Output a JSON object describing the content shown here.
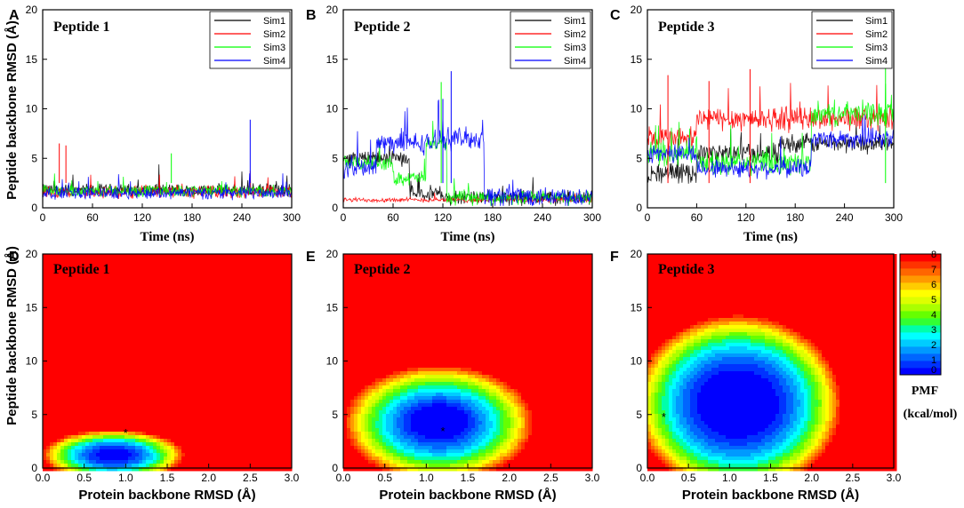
{
  "figure": {
    "y_axis_top_label": "Peptide backbone RMSD (Å)",
    "y_axis_bottom_label": "Peptide backbone RMSD (Å)",
    "colorbar": {
      "ticks": [
        "8",
        "7",
        "6",
        "5",
        "4",
        "3",
        "2",
        "1",
        "0"
      ],
      "label_line1": "PMF",
      "label_line2": "(kcal/mol)",
      "levels": [
        0,
        0.5,
        1,
        1.5,
        2,
        2.5,
        3,
        3.5,
        4,
        4.5,
        5,
        5.5,
        6,
        6.5,
        7,
        7.5,
        8
      ],
      "colors": [
        "#0000ff",
        "#0033ff",
        "#0066ff",
        "#0099ff",
        "#00ccff",
        "#00ffff",
        "#00ffaa",
        "#33ff33",
        "#66ff00",
        "#aaff00",
        "#ddff00",
        "#ffff00",
        "#ffcc00",
        "#ff9900",
        "#ff6600",
        "#ff3300",
        "#ff0000"
      ]
    }
  },
  "chart_data": [
    {
      "panel": "A",
      "type": "line",
      "title": "Peptide 1",
      "xlabel": "Time (ns)",
      "ylabel": "Peptide backbone RMSD (Å)",
      "xlim": [
        0,
        300
      ],
      "ylim": [
        0,
        20
      ],
      "x_ticks": [
        0,
        60,
        120,
        180,
        240,
        300
      ],
      "y_ticks": [
        0,
        5,
        10,
        15,
        20
      ],
      "series": [
        {
          "name": "Sim1",
          "color": "#000000",
          "segments": [
            [
              0,
              300,
              1.8
            ]
          ],
          "noise": 0.5
        },
        {
          "name": "Sim2",
          "color": "#ff0000",
          "segments": [
            [
              0,
              300,
              1.6
            ]
          ],
          "noise": 0.5
        },
        {
          "name": "Sim3",
          "color": "#00ff00",
          "segments": [
            [
              0,
              300,
              1.7
            ]
          ],
          "noise": 0.5
        },
        {
          "name": "Sim4",
          "color": "#0000ff",
          "segments": [
            [
              0,
              300,
              1.5
            ]
          ],
          "noise": 0.5
        }
      ],
      "spikes": [
        {
          "series": "Sim4",
          "x": 250,
          "y": 8.9
        },
        {
          "series": "Sim2",
          "x": 20,
          "y": 6.5
        },
        {
          "series": "Sim2",
          "x": 28,
          "y": 6.3
        },
        {
          "series": "Sim3",
          "x": 155,
          "y": 5.5
        }
      ]
    },
    {
      "panel": "B",
      "type": "line",
      "title": "Peptide 2",
      "xlabel": "Time (ns)",
      "ylabel": "",
      "xlim": [
        0,
        300
      ],
      "ylim": [
        0,
        20
      ],
      "x_ticks": [
        0,
        60,
        120,
        180,
        240,
        300
      ],
      "y_ticks": [
        0,
        5,
        10,
        15,
        20
      ],
      "series": [
        {
          "name": "Sim1",
          "color": "#000000",
          "segments": [
            [
              0,
              80,
              5.0
            ],
            [
              80,
              120,
              1.5
            ],
            [
              120,
              300,
              1.0
            ]
          ],
          "noise": 0.6
        },
        {
          "name": "Sim2",
          "color": "#ff0000",
          "segments": [
            [
              0,
              300,
              0.8
            ]
          ],
          "noise": 0.2
        },
        {
          "name": "Sim3",
          "color": "#00ff00",
          "segments": [
            [
              0,
              60,
              4.5
            ],
            [
              60,
              100,
              3.0
            ],
            [
              100,
              125,
              6.5
            ],
            [
              125,
              170,
              1.0
            ],
            [
              170,
              300,
              1.0
            ]
          ],
          "noise": 0.6
        },
        {
          "name": "Sim4",
          "color": "#0000ff",
          "segments": [
            [
              0,
              40,
              4.0
            ],
            [
              40,
              110,
              6.5
            ],
            [
              110,
              170,
              7.0
            ],
            [
              170,
              300,
              1.2
            ]
          ],
          "noise": 0.9
        }
      ],
      "spikes": [
        {
          "series": "Sim4",
          "x": 130,
          "y": 13.8
        },
        {
          "series": "Sim3",
          "x": 118,
          "y": 12.7
        },
        {
          "series": "Sim4",
          "x": 120,
          "y": 11.0
        }
      ]
    },
    {
      "panel": "C",
      "type": "line",
      "title": "Peptide 3",
      "xlabel": "Time (ns)",
      "ylabel": "",
      "xlim": [
        0,
        300
      ],
      "ylim": [
        0,
        20
      ],
      "x_ticks": [
        0,
        60,
        120,
        180,
        240,
        300
      ],
      "y_ticks": [
        0,
        5,
        10,
        15,
        20
      ],
      "series": [
        {
          "name": "Sim1",
          "color": "#000000",
          "segments": [
            [
              0,
              60,
              3.5
            ],
            [
              60,
              160,
              5.5
            ],
            [
              160,
              300,
              6.5
            ]
          ],
          "noise": 0.8
        },
        {
          "name": "Sim2",
          "color": "#ff0000",
          "segments": [
            [
              0,
              60,
              7.0
            ],
            [
              60,
              300,
              9.0
            ]
          ],
          "noise": 1.0
        },
        {
          "name": "Sim3",
          "color": "#00ff00",
          "segments": [
            [
              0,
              60,
              5.5
            ],
            [
              60,
              200,
              4.5
            ],
            [
              200,
              300,
              9.5
            ]
          ],
          "noise": 1.0
        },
        {
          "name": "Sim4",
          "color": "#0000ff",
          "segments": [
            [
              0,
              60,
              5.5
            ],
            [
              60,
              200,
              4.0
            ],
            [
              200,
              300,
              7.0
            ]
          ],
          "noise": 0.8
        }
      ],
      "spikes": [
        {
          "series": "Sim2",
          "x": 25,
          "y": 13.4
        },
        {
          "series": "Sim2",
          "x": 125,
          "y": 14.0
        },
        {
          "series": "Sim3",
          "x": 290,
          "y": 14.2
        },
        {
          "series": "Sim2",
          "x": 75,
          "y": 12.8
        }
      ]
    },
    {
      "panel": "D",
      "type": "heatmap",
      "title": "Peptide 1",
      "xlabel": "Protein backbone RMSD (Å)",
      "ylabel": "Peptide backbone RMSD (Å)",
      "xlim": [
        0,
        3
      ],
      "ylim": [
        0,
        20
      ],
      "x_ticks": [
        "0.0",
        "0.5",
        "1.0",
        "1.5",
        "2.0",
        "2.5",
        "3.0"
      ],
      "y_ticks": [
        0,
        5,
        10,
        15,
        20
      ],
      "minimum_marker": {
        "x": 1.0,
        "y": 3.3
      }
    },
    {
      "panel": "E",
      "type": "heatmap",
      "title": "Peptide 2",
      "xlabel": "Protein backbone RMSD (Å)",
      "ylabel": "",
      "xlim": [
        0,
        3
      ],
      "ylim": [
        0,
        20
      ],
      "x_ticks": [
        "0.0",
        "0.5",
        "1.0",
        "1.5",
        "2.0",
        "2.5",
        "3.0"
      ],
      "y_ticks": [
        0,
        5,
        10,
        15,
        20
      ],
      "minimum_marker": {
        "x": 1.2,
        "y": 3.5
      }
    },
    {
      "panel": "F",
      "type": "heatmap",
      "title": "Peptide 3",
      "xlabel": "Protein backbone RMSD (Å)",
      "ylabel": "",
      "xlim": [
        0,
        3
      ],
      "ylim": [
        0,
        20
      ],
      "x_ticks": [
        "0.0",
        "0.5",
        "1.0",
        "1.5",
        "2.0",
        "2.5",
        "3.0"
      ],
      "y_ticks": [
        0,
        5,
        10,
        15,
        20
      ],
      "minimum_marker": {
        "x": 0.2,
        "y": 4.8
      }
    }
  ]
}
